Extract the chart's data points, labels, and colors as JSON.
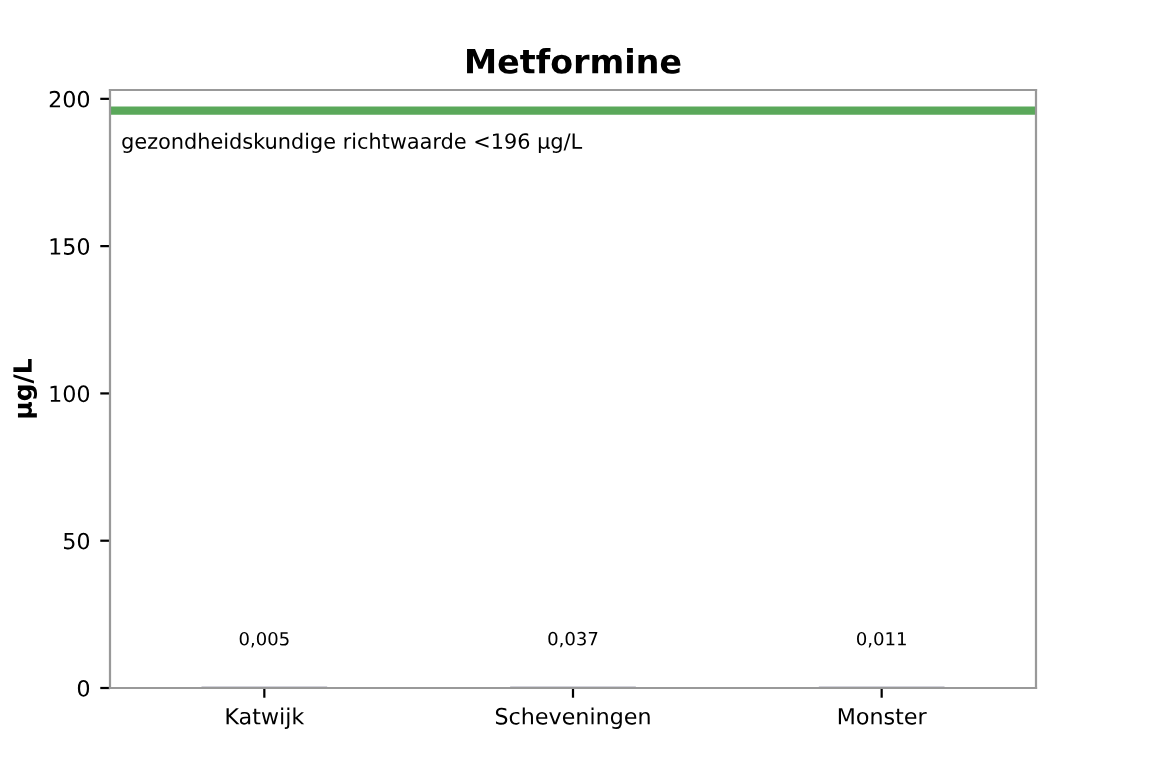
{
  "chart_data": {
    "type": "bar",
    "title": "Metformine",
    "ylabel": "µg/L",
    "categories": [
      "Katwijk",
      "Scheveningen",
      "Monster"
    ],
    "values": [
      0.005,
      0.037,
      0.011
    ],
    "color": "#4d4d6b",
    "value_labels": [
      "0,005",
      "0,037",
      "0,011"
    ],
    "ylim": [
      0,
      203
    ],
    "yticks": [
      0,
      50,
      100,
      150,
      200
    ],
    "grid": false,
    "ref_lines": [
      {
        "axis": "y",
        "value": 196,
        "label": "gezondheidskundige richtwaarde <196 µg/L",
        "color": "#5aa85a"
      }
    ]
  }
}
